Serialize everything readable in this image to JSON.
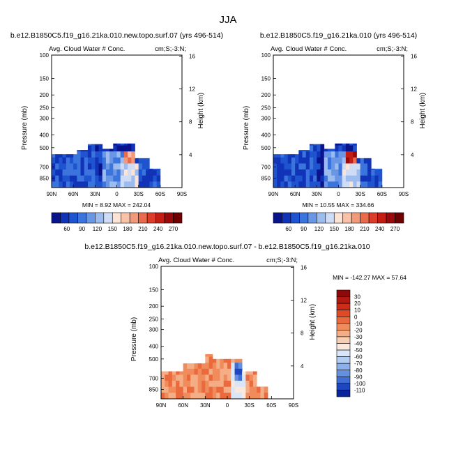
{
  "page_title": "JJA",
  "chart_data": [
    {
      "type": "heatmap",
      "title": "b.e12.B1850C5.f19_g16.21ka.010.new.topo.surf.07 (yrs 496-514)",
      "subtitle": "Avg. Cloud Water # Conc.",
      "units": "cm;S;-3:N;",
      "ylabel": "Pressure (mb)",
      "y2label": "Height (km)",
      "x_ticks": [
        "90N",
        "60N",
        "30N",
        "0",
        "30S",
        "60S",
        "90S"
      ],
      "y_ticks": [
        "100",
        "150",
        "200",
        "250",
        "300",
        "400",
        "500",
        "700",
        "850"
      ],
      "y2_ticks": [
        "16",
        "12",
        "8",
        "4"
      ],
      "ylim": [
        100,
        1000
      ],
      "log_y": true,
      "stats": "MIN =   8.92  MAX = 242.04",
      "colorbar_labels": [
        "60",
        "90",
        "120",
        "150",
        "180",
        "210",
        "240",
        "270"
      ],
      "colorbar_colors": [
        "#08138c",
        "#1133b8",
        "#1e54cf",
        "#3b74dd",
        "#6a96e6",
        "#9cbbef",
        "#cfdcf6",
        "#fbe3d6",
        "#f7c2a8",
        "#f2997a",
        "#ea6a4d",
        "#dc3d2a",
        "#c41e14",
        "#9b0a0a",
        "#6e0000"
      ],
      "field_max": 242.04,
      "field_min": 8.92
    },
    {
      "type": "heatmap",
      "title": "b.e12.B1850C5.f19_g16.21ka.010 (yrs 496-514)",
      "subtitle": "Avg. Cloud Water # Conc.",
      "units": "cm;S;-3:N;",
      "ylabel": "Pressure (mb)",
      "y2label": "Height (km)",
      "x_ticks": [
        "90N",
        "60N",
        "30N",
        "0",
        "30S",
        "60S",
        "90S"
      ],
      "y_ticks": [
        "100",
        "150",
        "200",
        "250",
        "300",
        "400",
        "500",
        "700",
        "850"
      ],
      "y2_ticks": [
        "16",
        "12",
        "8",
        "4"
      ],
      "ylim": [
        100,
        1000
      ],
      "log_y": true,
      "stats": "MIN =  10.55  MAX = 334.66",
      "colorbar_labels": [
        "60",
        "90",
        "120",
        "150",
        "180",
        "210",
        "240",
        "270"
      ],
      "colorbar_colors": [
        "#08138c",
        "#1133b8",
        "#1e54cf",
        "#3b74dd",
        "#6a96e6",
        "#9cbbef",
        "#cfdcf6",
        "#fbe3d6",
        "#f7c2a8",
        "#f2997a",
        "#ea6a4d",
        "#dc3d2a",
        "#c41e14",
        "#9b0a0a",
        "#6e0000"
      ],
      "field_max": 334.66,
      "field_min": 10.55
    },
    {
      "type": "heatmap",
      "title": "b.e12.B1850C5.f19_g16.21ka.010.new.topo.surf.07 - b.e12.B1850C5.f19_g16.21ka.010",
      "subtitle": "Avg. Cloud Water # Conc.",
      "units": "cm;S;-3:N;",
      "ylabel": "Pressure (mb)",
      "y2label": "Height (km)",
      "x_ticks": [
        "90N",
        "60N",
        "30N",
        "0",
        "30S",
        "60S",
        "90S"
      ],
      "y_ticks": [
        "100",
        "150",
        "200",
        "250",
        "300",
        "400",
        "500",
        "700",
        "850"
      ],
      "y2_ticks": [
        "16",
        "12",
        "8",
        "4"
      ],
      "ylim": [
        100,
        1000
      ],
      "log_y": true,
      "stats": "MIN = -142.27  MAX =  57.64",
      "colorbar_labels": [
        "30",
        "20",
        "10",
        "0",
        "-10",
        "-20",
        "-30",
        "-40",
        "-50",
        "-60",
        "-70",
        "-80",
        "-90",
        "-100",
        "-110"
      ],
      "colorbar_colors": [
        "#8e0a0a",
        "#b01a12",
        "#cd2d18",
        "#e04a25",
        "#ea6a3d",
        "#f08c5c",
        "#f4ad85",
        "#f8ceb2",
        "#fbe8dc",
        "#d9e6f8",
        "#b3ccf2",
        "#8cb0ea",
        "#6590e0",
        "#3f6ed6",
        "#1c47c0",
        "#0a2499"
      ],
      "field_max": 57.64,
      "field_min": -142.27
    }
  ]
}
